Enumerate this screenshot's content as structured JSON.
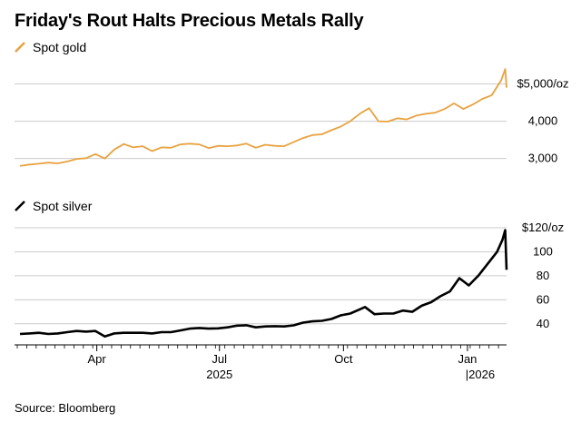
{
  "title": "Friday's Rout Halts Precious Metals Rally",
  "source": "Source: Bloomberg",
  "colors": {
    "gold": "#E8A23F",
    "silver": "#000000",
    "grid": "#cccccc",
    "axis": "#000000"
  },
  "x_axis": {
    "month_labels": [
      {
        "date": "2025-04-01",
        "label": "Apr"
      },
      {
        "date": "2025-07-01",
        "label": "Jul"
      },
      {
        "date": "2025-10-01",
        "label": "Oct"
      },
      {
        "date": "2026-01-01",
        "label": "Jan"
      }
    ],
    "year_labels": [
      {
        "date": "2025-07-01",
        "label": "2025"
      },
      {
        "date": "2026-01-01",
        "label": "|2026"
      }
    ]
  },
  "chart_data": [
    {
      "type": "line",
      "series": [
        {
          "name": "Spot gold",
          "color": "#E8A23F",
          "points": [
            [
              "2025-02-03",
              2800
            ],
            [
              "2025-02-10",
              2840
            ],
            [
              "2025-02-17",
              2860
            ],
            [
              "2025-02-24",
              2890
            ],
            [
              "2025-03-03",
              2870
            ],
            [
              "2025-03-10",
              2920
            ],
            [
              "2025-03-17",
              2990
            ],
            [
              "2025-03-24",
              3010
            ],
            [
              "2025-03-31",
              3120
            ],
            [
              "2025-04-07",
              3000
            ],
            [
              "2025-04-14",
              3240
            ],
            [
              "2025-04-21",
              3390
            ],
            [
              "2025-04-28",
              3300
            ],
            [
              "2025-05-05",
              3330
            ],
            [
              "2025-05-12",
              3200
            ],
            [
              "2025-05-19",
              3300
            ],
            [
              "2025-05-26",
              3290
            ],
            [
              "2025-06-02",
              3380
            ],
            [
              "2025-06-09",
              3400
            ],
            [
              "2025-06-16",
              3380
            ],
            [
              "2025-06-23",
              3280
            ],
            [
              "2025-06-30",
              3340
            ],
            [
              "2025-07-07",
              3330
            ],
            [
              "2025-07-14",
              3350
            ],
            [
              "2025-07-21",
              3400
            ],
            [
              "2025-07-28",
              3290
            ],
            [
              "2025-08-04",
              3370
            ],
            [
              "2025-08-11",
              3340
            ],
            [
              "2025-08-18",
              3330
            ],
            [
              "2025-08-25",
              3440
            ],
            [
              "2025-09-01",
              3550
            ],
            [
              "2025-09-08",
              3630
            ],
            [
              "2025-09-15",
              3650
            ],
            [
              "2025-09-22",
              3760
            ],
            [
              "2025-09-29",
              3860
            ],
            [
              "2025-10-06",
              4000
            ],
            [
              "2025-10-13",
              4200
            ],
            [
              "2025-10-20",
              4350
            ],
            [
              "2025-10-27",
              4000
            ],
            [
              "2025-11-03",
              3990
            ],
            [
              "2025-11-10",
              4080
            ],
            [
              "2025-11-17",
              4050
            ],
            [
              "2025-11-24",
              4150
            ],
            [
              "2025-12-01",
              4200
            ],
            [
              "2025-12-08",
              4230
            ],
            [
              "2025-12-15",
              4330
            ],
            [
              "2025-12-22",
              4480
            ],
            [
              "2025-12-29",
              4330
            ],
            [
              "2026-01-05",
              4450
            ],
            [
              "2026-01-12",
              4600
            ],
            [
              "2026-01-19",
              4700
            ],
            [
              "2026-01-26",
              5100
            ],
            [
              "2026-01-29",
              5400
            ],
            [
              "2026-01-30",
              4900
            ]
          ]
        }
      ],
      "y_ticks": [
        {
          "value": 3000,
          "label": "3,000"
        },
        {
          "value": 4000,
          "label": "4,000"
        },
        {
          "value": 5000,
          "label": "$5,000/oz"
        }
      ],
      "ylim": [
        2700,
        5500
      ]
    },
    {
      "type": "line",
      "series": [
        {
          "name": "Spot silver",
          "color": "#000000",
          "points": [
            [
              "2025-02-03",
              31.5
            ],
            [
              "2025-02-10",
              32.0
            ],
            [
              "2025-02-17",
              32.5
            ],
            [
              "2025-02-24",
              31.5
            ],
            [
              "2025-03-03",
              32.0
            ],
            [
              "2025-03-10",
              33.0
            ],
            [
              "2025-03-17",
              34.0
            ],
            [
              "2025-03-24",
              33.5
            ],
            [
              "2025-03-31",
              34.0
            ],
            [
              "2025-04-07",
              29.5
            ],
            [
              "2025-04-14",
              32.0
            ],
            [
              "2025-04-21",
              32.5
            ],
            [
              "2025-04-28",
              32.5
            ],
            [
              "2025-05-05",
              32.5
            ],
            [
              "2025-05-12",
              32.0
            ],
            [
              "2025-05-19",
              33.0
            ],
            [
              "2025-05-26",
              33.0
            ],
            [
              "2025-06-02",
              34.5
            ],
            [
              "2025-06-09",
              36.0
            ],
            [
              "2025-06-16",
              36.5
            ],
            [
              "2025-06-23",
              36.0
            ],
            [
              "2025-06-30",
              36.2
            ],
            [
              "2025-07-07",
              37.0
            ],
            [
              "2025-07-14",
              38.5
            ],
            [
              "2025-07-21",
              38.8
            ],
            [
              "2025-07-28",
              37.0
            ],
            [
              "2025-08-04",
              37.8
            ],
            [
              "2025-08-11",
              38.0
            ],
            [
              "2025-08-18",
              37.8
            ],
            [
              "2025-08-25",
              38.7
            ],
            [
              "2025-09-01",
              41.0
            ],
            [
              "2025-09-08",
              42.0
            ],
            [
              "2025-09-15",
              42.5
            ],
            [
              "2025-09-22",
              44.0
            ],
            [
              "2025-09-29",
              47.0
            ],
            [
              "2025-10-06",
              48.5
            ],
            [
              "2025-10-13",
              52.0
            ],
            [
              "2025-10-17",
              54.0
            ],
            [
              "2025-10-24",
              48.0
            ],
            [
              "2025-10-31",
              48.5
            ],
            [
              "2025-11-07",
              48.5
            ],
            [
              "2025-11-14",
              51.0
            ],
            [
              "2025-11-21",
              50.0
            ],
            [
              "2025-11-28",
              55.0
            ],
            [
              "2025-12-05",
              58.0
            ],
            [
              "2025-12-12",
              63.0
            ],
            [
              "2025-12-19",
              67.0
            ],
            [
              "2025-12-26",
              78.0
            ],
            [
              "2026-01-02",
              72.0
            ],
            [
              "2026-01-09",
              80.0
            ],
            [
              "2026-01-16",
              90.0
            ],
            [
              "2026-01-23",
              100.0
            ],
            [
              "2026-01-27",
              110.0
            ],
            [
              "2026-01-29",
              118.0
            ],
            [
              "2026-01-30",
              85.0
            ]
          ]
        }
      ],
      "y_ticks": [
        {
          "value": 40,
          "label": "40"
        },
        {
          "value": 60,
          "label": "60"
        },
        {
          "value": 80,
          "label": "80"
        },
        {
          "value": 100,
          "label": "100"
        },
        {
          "value": 120,
          "label": "$120/oz"
        }
      ],
      "ylim": [
        30,
        120
      ]
    }
  ]
}
